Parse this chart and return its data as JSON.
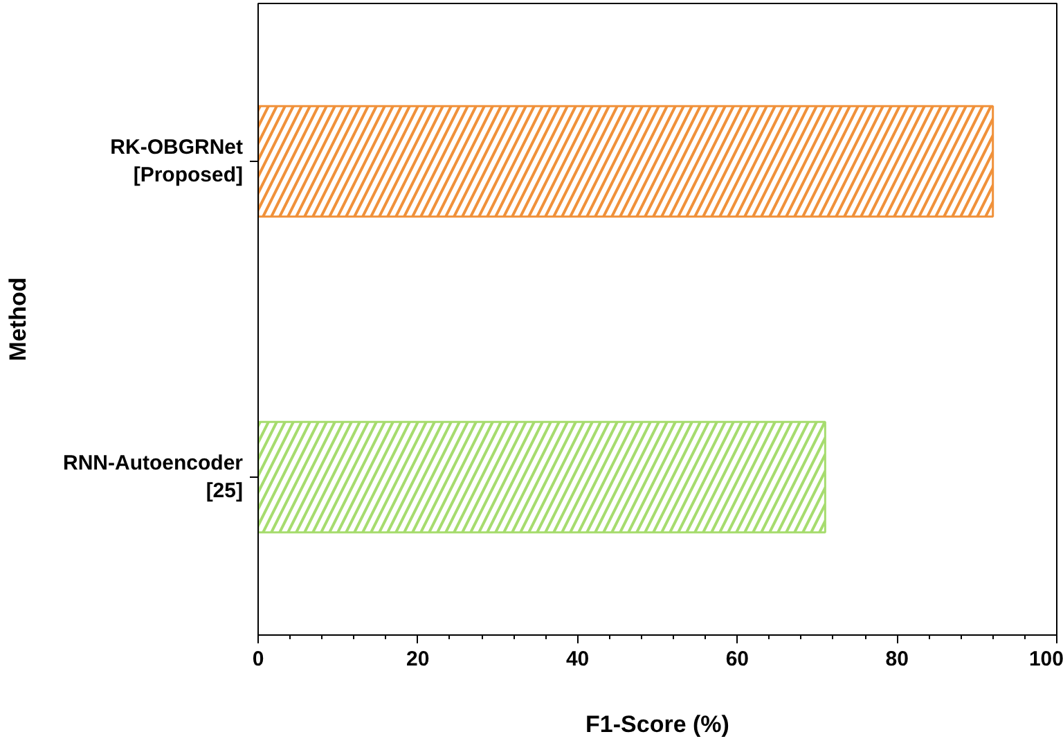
{
  "chart_data": {
    "type": "bar",
    "orientation": "horizontal",
    "categories": [
      "RK-OBGRNet\n[Proposed]",
      "RNN-Autoencoder\n[25]"
    ],
    "values": [
      92,
      71
    ],
    "colors": [
      "#f0913a",
      "#a6dc6e"
    ],
    "xlabel": "F1-Score (%)",
    "ylabel": "Method",
    "xlim": [
      0,
      100
    ],
    "xticks": [
      0,
      20,
      40,
      60,
      80,
      100
    ],
    "grid": false
  }
}
